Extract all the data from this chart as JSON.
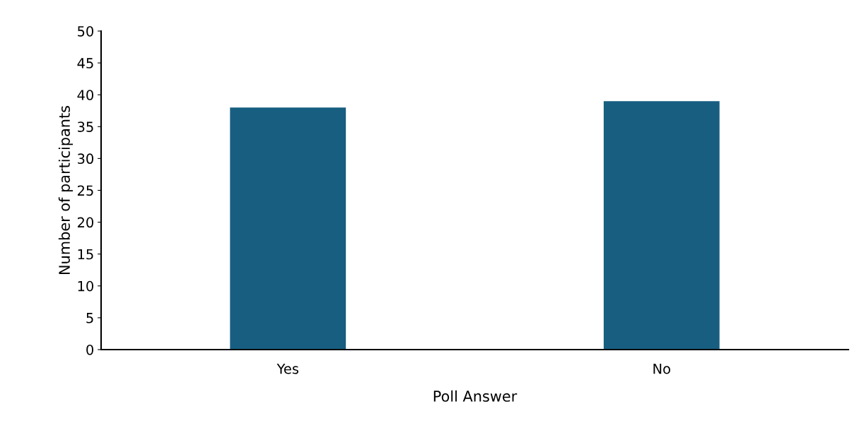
{
  "chart_data": {
    "type": "bar",
    "xlabel": "Poll Answer",
    "ylabel": "Number of participants",
    "categories": [
      "Yes",
      "No"
    ],
    "values": [
      38,
      39
    ],
    "color": "#175e81",
    "ylim": [
      0,
      50
    ],
    "yticks": [
      0,
      5,
      10,
      15,
      20,
      25,
      30,
      35,
      40,
      45,
      50
    ],
    "grid": false,
    "legend": false
  }
}
